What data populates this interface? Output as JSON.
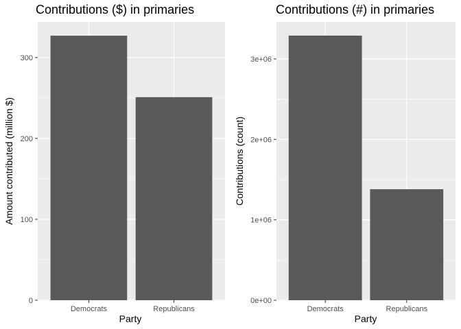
{
  "chart_data": [
    {
      "type": "bar",
      "title": "Contributions ($) in primaries",
      "xlabel": "Party",
      "ylabel": "Amount contributed (million $)",
      "categories": [
        "Democrats",
        "Republicans"
      ],
      "values": [
        327,
        251
      ],
      "ylim": [
        0,
        344
      ],
      "yticks": [
        0,
        100,
        200,
        300
      ],
      "ytick_labels": [
        "0",
        "100",
        "200",
        "300"
      ],
      "grid": true,
      "bar_color": "#595959",
      "panel_color": "#ebebeb",
      "grid_color": "#ffffff"
    },
    {
      "type": "bar",
      "title": "Contributions (#) in primaries",
      "xlabel": "Party",
      "ylabel": "Contributions (count)",
      "categories": [
        "Democrats",
        "Republicans"
      ],
      "values": [
        3290000,
        1380000
      ],
      "ylim": [
        0,
        3460000
      ],
      "yticks": [
        0,
        1000000,
        2000000,
        3000000
      ],
      "ytick_labels": [
        "0e+00",
        "1e+06",
        "2e+06",
        "3e+06"
      ],
      "grid": true,
      "bar_color": "#595959",
      "panel_color": "#ebebeb",
      "grid_color": "#ffffff"
    }
  ]
}
